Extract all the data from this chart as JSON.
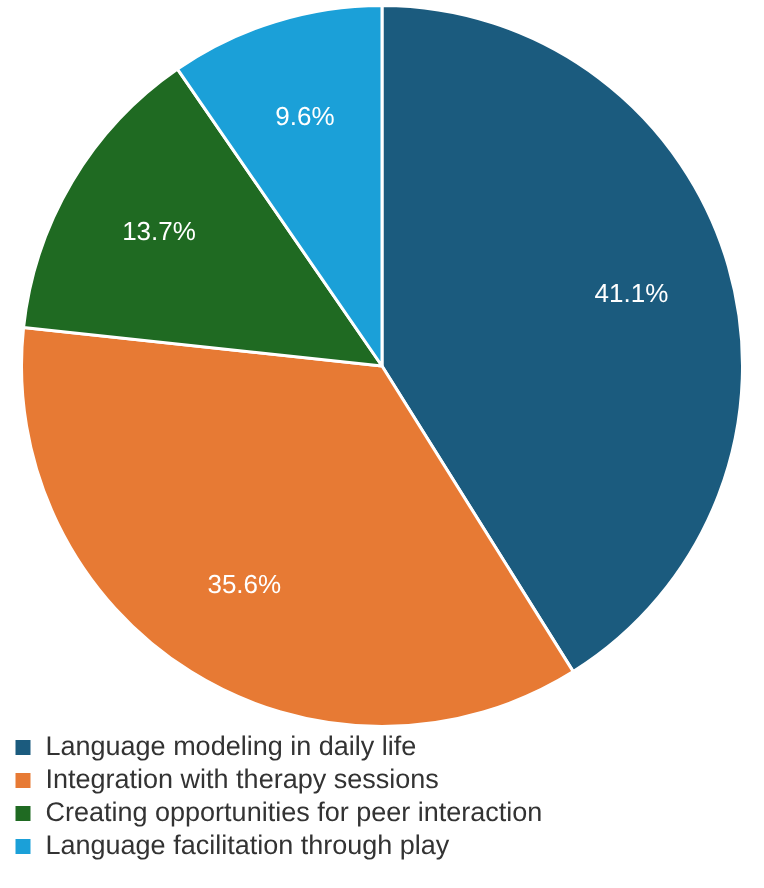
{
  "chart_data": {
    "type": "pie",
    "categories": [
      "Language modeling in daily life",
      "Integration with therapy sessions",
      "Creating opportunities for peer interaction",
      "Language facilitation through play"
    ],
    "values": [
      41.1,
      35.6,
      13.7,
      9.6
    ],
    "colors": [
      "#1b5b7e",
      "#e77a34",
      "#1f6a22",
      "#1ba0d8"
    ],
    "value_labels": [
      "41.1%",
      "35.6%",
      "13.7%",
      "9.6%"
    ],
    "legend": "bottom"
  }
}
